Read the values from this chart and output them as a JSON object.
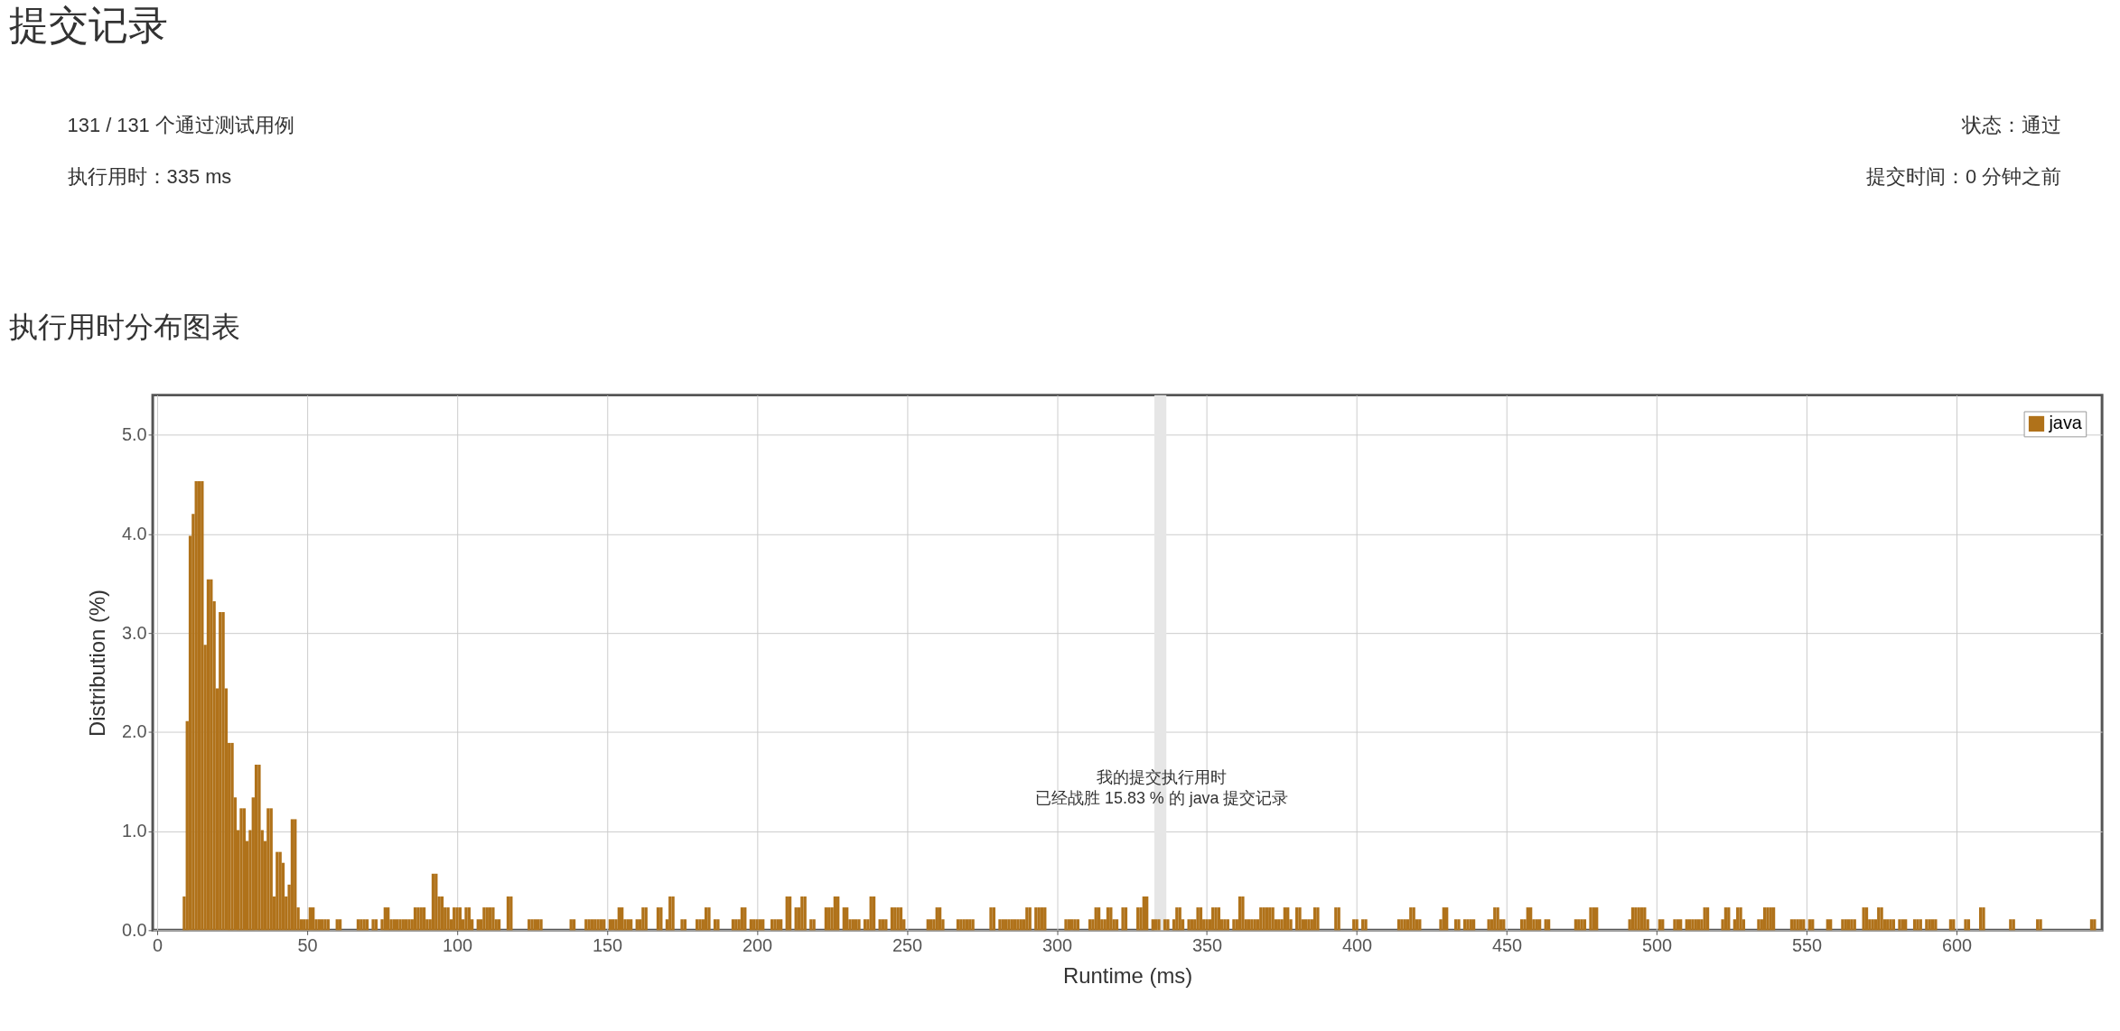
{
  "chart_data": {
    "type": "bar",
    "title": "执行用时分布图表",
    "xlabel": "Runtime (ms)",
    "ylabel": "Distribution (%)",
    "xlim": [
      0,
      647
    ],
    "xticks": [
      0,
      50,
      100,
      150,
      200,
      250,
      300,
      350,
      400,
      450,
      500,
      550,
      600
    ],
    "ylim": [
      0,
      5.4
    ],
    "yticks": [
      {
        "value": 0,
        "label": "0.0"
      },
      {
        "value": 1,
        "label": "1.0"
      },
      {
        "value": 2,
        "label": "2.0"
      },
      {
        "value": 3,
        "label": "3.0"
      },
      {
        "value": 4,
        "label": "4.0"
      },
      {
        "value": 5,
        "label": "5.0"
      }
    ],
    "grid": true,
    "legend": "top right",
    "bands": [
      {
        "axis": "x",
        "from": 332.5,
        "to": 336.5,
        "color": "#e6e6e6"
      }
    ],
    "annotations": [
      "提交记录",
      "131 / 131 个通过测试用例",
      "执行用时：335 ms",
      "状态：通过",
      "提交时间：0 分钟之前",
      {
        "text": "我的提交执行用时",
        "x": 335,
        "y": 1.15
      },
      {
        "text": "已经战胜 15.83 % 的 java 提交记录",
        "x": 335,
        "y": 1.15
      }
    ],
    "series": [
      {
        "name": "java",
        "color": "#b0721a",
        "x": [
          9,
          10,
          11,
          12,
          13,
          14,
          15,
          16,
          17,
          18,
          19,
          20,
          21,
          22,
          23,
          24,
          25,
          26,
          27,
          28,
          29,
          30,
          31,
          32,
          33,
          34,
          35,
          36,
          37,
          38,
          39,
          40,
          41,
          42,
          43,
          44,
          45,
          46,
          47,
          48,
          49,
          50,
          51,
          52,
          53,
          54,
          55,
          56,
          57,
          60,
          61,
          67,
          68,
          69,
          70,
          72,
          73,
          75,
          76,
          77,
          78,
          79,
          80,
          81,
          82,
          83,
          84,
          85,
          86,
          87,
          88,
          89,
          90,
          91,
          92,
          93,
          94,
          95,
          96,
          97,
          98,
          99,
          100,
          101,
          102,
          103,
          104,
          105,
          107,
          108,
          109,
          110,
          111,
          112,
          113,
          114,
          117,
          118,
          124,
          125,
          126,
          127,
          128,
          138,
          139,
          143,
          144,
          145,
          146,
          147,
          148,
          149,
          151,
          152,
          153,
          154,
          155,
          156,
          157,
          158,
          160,
          161,
          162,
          163,
          167,
          168,
          170,
          171,
          172,
          175,
          176,
          180,
          181,
          182,
          183,
          184,
          186,
          187,
          192,
          193,
          194,
          195,
          196,
          198,
          199,
          200,
          201,
          202,
          205,
          206,
          207,
          208,
          210,
          211,
          213,
          214,
          215,
          216,
          218,
          219,
          223,
          224,
          225,
          226,
          227,
          229,
          230,
          231,
          232,
          233,
          234,
          236,
          237,
          238,
          239,
          241,
          242,
          243,
          245,
          246,
          247,
          248,
          249,
          257,
          258,
          259,
          260,
          261,
          262,
          267,
          268,
          269,
          270,
          271,
          272,
          278,
          279,
          281,
          282,
          283,
          284,
          285,
          286,
          287,
          288,
          289,
          290,
          291,
          293,
          294,
          295,
          296,
          303,
          304,
          305,
          306,
          307,
          311,
          312,
          313,
          314,
          315,
          316,
          317,
          318,
          319,
          320,
          322,
          323,
          327,
          328,
          329,
          330,
          332,
          333,
          334,
          336,
          337,
          339,
          340,
          341,
          342,
          344,
          345,
          346,
          347,
          348,
          349,
          350,
          351,
          352,
          353,
          354,
          355,
          356,
          357,
          359,
          360,
          361,
          362,
          363,
          364,
          365,
          366,
          367,
          368,
          369,
          370,
          371,
          372,
          373,
          374,
          375,
          376,
          377,
          378,
          380,
          381,
          382,
          383,
          384,
          385,
          386,
          387,
          393,
          394,
          399,
          400,
          402,
          403,
          414,
          415,
          416,
          417,
          418,
          419,
          420,
          421,
          428,
          429,
          430,
          433,
          434,
          436,
          437,
          438,
          439,
          444,
          445,
          446,
          447,
          448,
          449,
          455,
          456,
          457,
          458,
          459,
          460,
          461,
          463,
          464,
          473,
          474,
          475,
          476,
          478,
          479,
          480,
          491,
          492,
          493,
          494,
          495,
          496,
          497,
          501,
          502,
          506,
          507,
          508,
          510,
          511,
          512,
          513,
          514,
          515,
          516,
          517,
          522,
          523,
          524,
          526,
          527,
          528,
          529,
          534,
          535,
          536,
          537,
          538,
          539,
          545,
          546,
          547,
          548,
          549,
          551,
          552,
          557,
          558,
          562,
          563,
          564,
          565,
          566,
          569,
          570,
          571,
          572,
          573,
          574,
          575,
          576,
          577,
          578,
          579,
          581,
          582,
          583,
          586,
          587,
          588,
          590,
          591,
          592,
          593,
          598,
          599,
          603,
          604,
          608,
          609,
          618,
          619,
          627,
          628,
          645,
          646
        ],
        "values": [
          0.34,
          2.11,
          3.98,
          4.2,
          4.53,
          4.53,
          4.53,
          2.88,
          3.54,
          3.54,
          3.32,
          2.44,
          3.21,
          3.21,
          2.44,
          1.89,
          1.89,
          1.34,
          1.01,
          1.23,
          1.23,
          0.9,
          1.01,
          1.34,
          1.67,
          1.67,
          1.01,
          0.9,
          1.23,
          1.23,
          0.34,
          0.79,
          0.79,
          0.68,
          0.34,
          0.46,
          1.12,
          1.12,
          0.23,
          0.11,
          0.11,
          0.11,
          0.23,
          0.23,
          0.11,
          0.11,
          0.11,
          0.11,
          0.11,
          0.11,
          0.11,
          0.11,
          0.11,
          0.11,
          0.11,
          0.11,
          0.11,
          0.11,
          0.23,
          0.23,
          0.11,
          0.11,
          0.11,
          0.11,
          0.11,
          0.11,
          0.11,
          0.11,
          0.23,
          0.23,
          0.23,
          0.23,
          0.11,
          0.11,
          0.57,
          0.57,
          0.34,
          0.34,
          0.23,
          0.23,
          0.11,
          0.23,
          0.23,
          0.23,
          0.11,
          0.23,
          0.23,
          0.11,
          0.11,
          0.11,
          0.23,
          0.23,
          0.23,
          0.23,
          0.11,
          0.11,
          0.34,
          0.34,
          0.11,
          0.11,
          0.11,
          0.11,
          0.11,
          0.11,
          0.11,
          0.11,
          0.11,
          0.11,
          0.11,
          0.11,
          0.11,
          0.11,
          0.11,
          0.11,
          0.11,
          0.23,
          0.23,
          0.11,
          0.11,
          0.11,
          0.11,
          0.11,
          0.23,
          0.23,
          0.23,
          0.23,
          0.11,
          0.34,
          0.34,
          0.11,
          0.11,
          0.11,
          0.11,
          0.11,
          0.23,
          0.23,
          0.11,
          0.11,
          0.11,
          0.11,
          0.11,
          0.23,
          0.23,
          0.11,
          0.11,
          0.11,
          0.11,
          0.11,
          0.11,
          0.11,
          0.11,
          0.11,
          0.34,
          0.34,
          0.23,
          0.23,
          0.34,
          0.34,
          0.11,
          0.11,
          0.23,
          0.23,
          0.23,
          0.34,
          0.34,
          0.23,
          0.23,
          0.11,
          0.11,
          0.11,
          0.11,
          0.11,
          0.11,
          0.34,
          0.34,
          0.11,
          0.11,
          0.11,
          0.23,
          0.23,
          0.23,
          0.23,
          0.11,
          0.11,
          0.11,
          0.11,
          0.23,
          0.23,
          0.11,
          0.11,
          0.11,
          0.11,
          0.11,
          0.11,
          0.11,
          0.23,
          0.23,
          0.11,
          0.11,
          0.11,
          0.11,
          0.11,
          0.11,
          0.11,
          0.11,
          0.11,
          0.23,
          0.23,
          0.23,
          0.23,
          0.23,
          0.23,
          0.11,
          0.11,
          0.11,
          0.11,
          0.11,
          0.11,
          0.11,
          0.23,
          0.23,
          0.11,
          0.11,
          0.23,
          0.23,
          0.11,
          0.11,
          0.23,
          0.23,
          0.23,
          0.23,
          0.34,
          0.34,
          0.11,
          0.11,
          0.11,
          0.11,
          0.11,
          0.11,
          0.23,
          0.23,
          0.11,
          0.11,
          0.11,
          0.11,
          0.23,
          0.23,
          0.11,
          0.11,
          0.11,
          0.23,
          0.23,
          0.23,
          0.11,
          0.11,
          0.11,
          0.11,
          0.11,
          0.34,
          0.34,
          0.11,
          0.11,
          0.11,
          0.11,
          0.11,
          0.23,
          0.23,
          0.23,
          0.23,
          0.23,
          0.11,
          0.11,
          0.11,
          0.23,
          0.23,
          0.11,
          0.23,
          0.23,
          0.11,
          0.11,
          0.11,
          0.11,
          0.23,
          0.23,
          0.23,
          0.23,
          0.11,
          0.11,
          0.11,
          0.11,
          0.11,
          0.11,
          0.11,
          0.11,
          0.23,
          0.23,
          0.11,
          0.11,
          0.11,
          0.23,
          0.23,
          0.11,
          0.11,
          0.11,
          0.11,
          0.11,
          0.11,
          0.11,
          0.11,
          0.23,
          0.23,
          0.11,
          0.11,
          0.11,
          0.11,
          0.23,
          0.23,
          0.11,
          0.11,
          0.11,
          0.11,
          0.11,
          0.11,
          0.11,
          0.11,
          0.11,
          0.23,
          0.23,
          0.23,
          0.11,
          0.23,
          0.23,
          0.23,
          0.23,
          0.23,
          0.11,
          0.11,
          0.11,
          0.11,
          0.11,
          0.11,
          0.11,
          0.11,
          0.11,
          0.11,
          0.11,
          0.11,
          0.23,
          0.23,
          0.11,
          0.23,
          0.23,
          0.11,
          0.23,
          0.23,
          0.11,
          0.11,
          0.11,
          0.23,
          0.23,
          0.23,
          0.23,
          0.11,
          0.11,
          0.11,
          0.11,
          0.11,
          0.11,
          0.11,
          0.11,
          0.11,
          0.11,
          0.11,
          0.11,
          0.11,
          0.11,
          0.23,
          0.23,
          0.11,
          0.11,
          0.11,
          0.23,
          0.23,
          0.11,
          0.11,
          0.11,
          0.11,
          0.11,
          0.11,
          0.11,
          0.11,
          0.11,
          0.11,
          0.11,
          0.11,
          0.11,
          0.11,
          0.11,
          0.11,
          0.11,
          0.11,
          0.23,
          0.23,
          0.11,
          0.11,
          0.11,
          0.11,
          0.11,
          0.11
        ]
      }
    ]
  }
}
